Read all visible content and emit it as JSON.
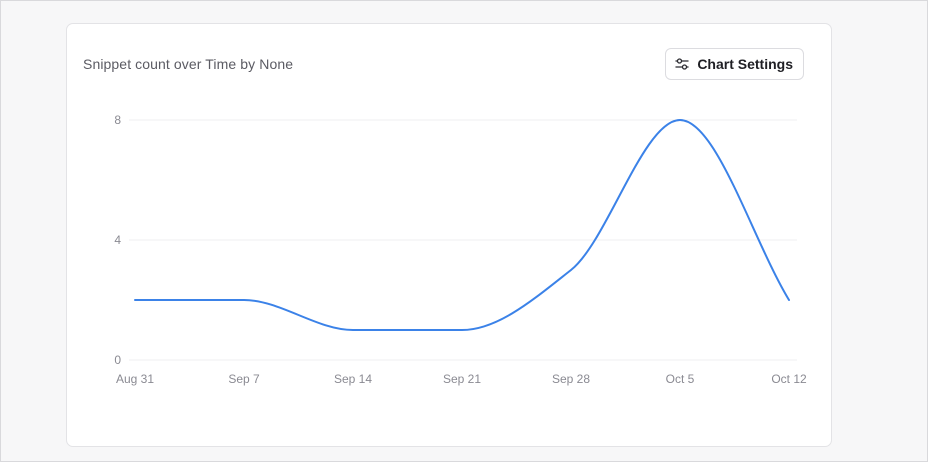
{
  "card": {
    "title": "Snippet count over Time by None",
    "settings_button": {
      "label": "Chart Settings",
      "icon": "sliders-icon"
    }
  },
  "colors": {
    "line": "#3b82e8",
    "grid": "#efeff1",
    "tick": "#8a8a92"
  },
  "chart_data": {
    "type": "line",
    "title": "Snippet count over Time by None",
    "xlabel": "",
    "ylabel": "",
    "x": [
      "Aug 31",
      "Sep 7",
      "Sep 14",
      "Sep 21",
      "Sep 28",
      "Oct 5",
      "Oct 12"
    ],
    "series": [
      {
        "values": [
          2,
          2,
          1,
          1,
          3,
          8,
          2
        ]
      }
    ],
    "ylim": [
      0,
      8
    ],
    "yticks": [
      0,
      4,
      8
    ],
    "grid": true,
    "curve": "smooth"
  }
}
